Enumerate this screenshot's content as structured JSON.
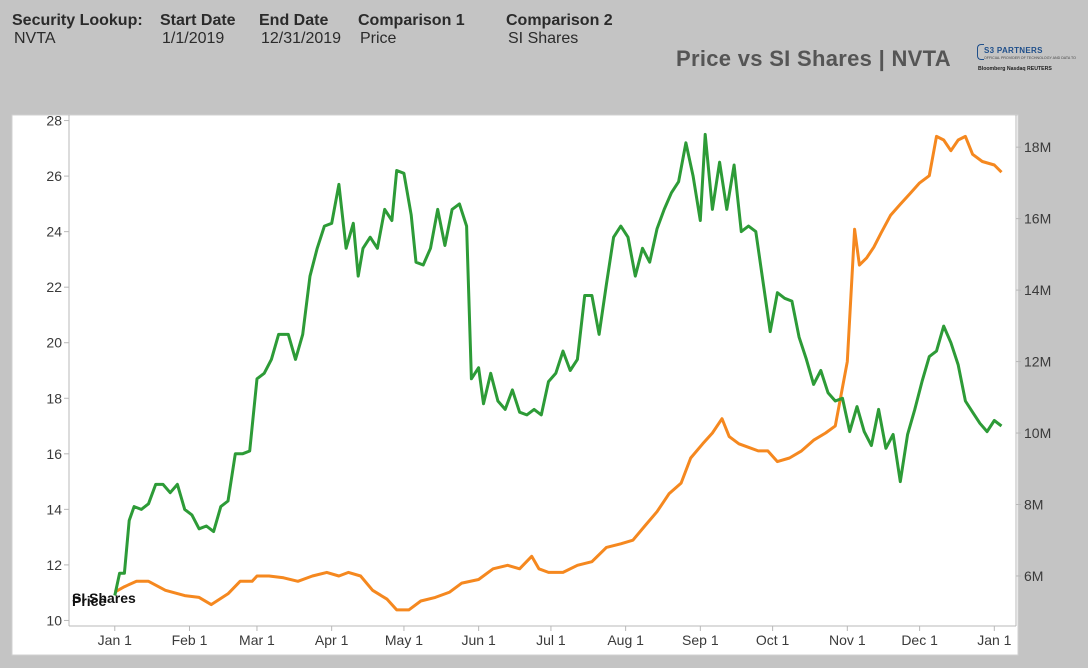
{
  "header": {
    "fields": [
      {
        "label": "Security Lookup:",
        "value": "NVTA"
      },
      {
        "label": "Start Date",
        "value": "1/1/2019"
      },
      {
        "label": "End Date",
        "value": "12/31/2019"
      },
      {
        "label": "Comparison 1",
        "value": "Price"
      },
      {
        "label": "Comparison 2",
        "value": "SI Shares"
      }
    ]
  },
  "logo": {
    "title": "S3 PARTNERS",
    "subtitle": "OFFICIAL PROVIDER OF TECHNOLOGY AND DATA TO",
    "vendors": "Bloomberg  Nasdaq  REUTERS"
  },
  "colors": {
    "price": "#2d9b37",
    "si_shares": "#f5881f",
    "background": "#c4c4c4",
    "plot": "#ffffff"
  },
  "chart_data": {
    "type": "line",
    "title": "Price vs SI Shares | NVTA",
    "x_ticks": [
      "Jan 1",
      "Feb 1",
      "Mar 1",
      "Apr 1",
      "May 1",
      "Jun 1",
      "Jul 1",
      "Aug 1",
      "Sep 1",
      "Oct 1",
      "Nov 1",
      "Dec 1",
      "Jan 1"
    ],
    "x_range": [
      "2018-12-13",
      "2020-01-10"
    ],
    "y_left": {
      "range": [
        9.8,
        28.2
      ],
      "ticks": [
        "10",
        "12",
        "14",
        "16",
        "18",
        "20",
        "22",
        "24",
        "26",
        "28"
      ]
    },
    "y_right": {
      "range": [
        4.6,
        18.9
      ],
      "unit": "M",
      "ticks": [
        "6M",
        "8M",
        "10M",
        "12M",
        "14M",
        "16M",
        "18M"
      ]
    },
    "grid": false,
    "series": [
      {
        "name": "Price",
        "axis": "left",
        "points": [
          [
            "2019-01-01",
            10.9
          ],
          [
            "2019-01-03",
            11.7
          ],
          [
            "2019-01-05",
            11.7
          ],
          [
            "2019-01-07",
            13.6
          ],
          [
            "2019-01-09",
            14.1
          ],
          [
            "2019-01-12",
            14.0
          ],
          [
            "2019-01-15",
            14.2
          ],
          [
            "2019-01-18",
            14.9
          ],
          [
            "2019-01-21",
            14.9
          ],
          [
            "2019-01-24",
            14.6
          ],
          [
            "2019-01-27",
            14.9
          ],
          [
            "2019-01-30",
            14.0
          ],
          [
            "2019-02-02",
            13.8
          ],
          [
            "2019-02-05",
            13.3
          ],
          [
            "2019-02-08",
            13.4
          ],
          [
            "2019-02-11",
            13.2
          ],
          [
            "2019-02-14",
            14.1
          ],
          [
            "2019-02-17",
            14.3
          ],
          [
            "2019-02-20",
            16.0
          ],
          [
            "2019-02-23",
            16.0
          ],
          [
            "2019-02-26",
            16.1
          ],
          [
            "2019-03-01",
            18.7
          ],
          [
            "2019-03-04",
            18.9
          ],
          [
            "2019-03-07",
            19.4
          ],
          [
            "2019-03-10",
            20.3
          ],
          [
            "2019-03-14",
            20.3
          ],
          [
            "2019-03-17",
            19.4
          ],
          [
            "2019-03-20",
            20.3
          ],
          [
            "2019-03-23",
            22.4
          ],
          [
            "2019-03-26",
            23.4
          ],
          [
            "2019-03-29",
            24.2
          ],
          [
            "2019-04-01",
            24.3
          ],
          [
            "2019-04-04",
            25.7
          ],
          [
            "2019-04-07",
            23.4
          ],
          [
            "2019-04-10",
            24.3
          ],
          [
            "2019-04-12",
            22.4
          ],
          [
            "2019-04-14",
            23.4
          ],
          [
            "2019-04-17",
            23.8
          ],
          [
            "2019-04-20",
            23.4
          ],
          [
            "2019-04-23",
            24.8
          ],
          [
            "2019-04-26",
            24.4
          ],
          [
            "2019-04-28",
            26.2
          ],
          [
            "2019-05-01",
            26.1
          ],
          [
            "2019-05-04",
            24.6
          ],
          [
            "2019-05-06",
            22.9
          ],
          [
            "2019-05-09",
            22.8
          ],
          [
            "2019-05-12",
            23.4
          ],
          [
            "2019-05-15",
            24.8
          ],
          [
            "2019-05-18",
            23.5
          ],
          [
            "2019-05-21",
            24.8
          ],
          [
            "2019-05-24",
            25.0
          ],
          [
            "2019-05-27",
            24.2
          ],
          [
            "2019-05-29",
            18.7
          ],
          [
            "2019-06-01",
            19.1
          ],
          [
            "2019-06-03",
            17.8
          ],
          [
            "2019-06-06",
            18.9
          ],
          [
            "2019-06-09",
            17.9
          ],
          [
            "2019-06-12",
            17.6
          ],
          [
            "2019-06-15",
            18.3
          ],
          [
            "2019-06-18",
            17.5
          ],
          [
            "2019-06-21",
            17.4
          ],
          [
            "2019-06-24",
            17.6
          ],
          [
            "2019-06-27",
            17.4
          ],
          [
            "2019-06-30",
            18.6
          ],
          [
            "2019-07-03",
            18.9
          ],
          [
            "2019-07-06",
            19.7
          ],
          [
            "2019-07-09",
            19.0
          ],
          [
            "2019-07-12",
            19.4
          ],
          [
            "2019-07-15",
            21.7
          ],
          [
            "2019-07-18",
            21.7
          ],
          [
            "2019-07-21",
            20.3
          ],
          [
            "2019-07-24",
            22.1
          ],
          [
            "2019-07-27",
            23.8
          ],
          [
            "2019-07-30",
            24.2
          ],
          [
            "2019-08-02",
            23.8
          ],
          [
            "2019-08-05",
            22.4
          ],
          [
            "2019-08-08",
            23.4
          ],
          [
            "2019-08-11",
            22.9
          ],
          [
            "2019-08-14",
            24.1
          ],
          [
            "2019-08-17",
            24.8
          ],
          [
            "2019-08-20",
            25.4
          ],
          [
            "2019-08-23",
            25.8
          ],
          [
            "2019-08-26",
            27.2
          ],
          [
            "2019-08-29",
            26.0
          ],
          [
            "2019-09-01",
            24.4
          ],
          [
            "2019-09-03",
            27.5
          ],
          [
            "2019-09-06",
            24.8
          ],
          [
            "2019-09-09",
            26.5
          ],
          [
            "2019-09-12",
            24.8
          ],
          [
            "2019-09-15",
            26.4
          ],
          [
            "2019-09-18",
            24.0
          ],
          [
            "2019-09-21",
            24.2
          ],
          [
            "2019-09-24",
            24.0
          ],
          [
            "2019-09-27",
            22.2
          ],
          [
            "2019-09-30",
            20.4
          ],
          [
            "2019-10-03",
            21.8
          ],
          [
            "2019-10-06",
            21.6
          ],
          [
            "2019-10-09",
            21.5
          ],
          [
            "2019-10-12",
            20.2
          ],
          [
            "2019-10-15",
            19.4
          ],
          [
            "2019-10-18",
            18.5
          ],
          [
            "2019-10-21",
            19.0
          ],
          [
            "2019-10-24",
            18.2
          ],
          [
            "2019-10-27",
            17.9
          ],
          [
            "2019-10-30",
            18.0
          ],
          [
            "2019-11-02",
            16.8
          ],
          [
            "2019-11-05",
            17.7
          ],
          [
            "2019-11-08",
            16.8
          ],
          [
            "2019-11-11",
            16.3
          ],
          [
            "2019-11-14",
            17.6
          ],
          [
            "2019-11-17",
            16.2
          ],
          [
            "2019-11-20",
            16.7
          ],
          [
            "2019-11-23",
            15.0
          ],
          [
            "2019-11-26",
            16.7
          ],
          [
            "2019-11-29",
            17.6
          ],
          [
            "2019-12-02",
            18.6
          ],
          [
            "2019-12-05",
            19.5
          ],
          [
            "2019-12-08",
            19.7
          ],
          [
            "2019-12-11",
            20.6
          ],
          [
            "2019-12-14",
            20.0
          ],
          [
            "2019-12-17",
            19.2
          ],
          [
            "2019-12-20",
            17.9
          ],
          [
            "2019-12-23",
            17.5
          ],
          [
            "2019-12-26",
            17.1
          ],
          [
            "2019-12-29",
            16.8
          ],
          [
            "2020-01-01",
            17.2
          ],
          [
            "2020-01-04",
            17.0
          ]
        ]
      },
      {
        "name": "SI Shares",
        "axis": "right",
        "points": [
          [
            "2019-01-01",
            5.55
          ],
          [
            "2019-01-05",
            5.7
          ],
          [
            "2019-01-10",
            5.85
          ],
          [
            "2019-01-15",
            5.85
          ],
          [
            "2019-01-22",
            5.6
          ],
          [
            "2019-01-30",
            5.45
          ],
          [
            "2019-02-05",
            5.4
          ],
          [
            "2019-02-10",
            5.2
          ],
          [
            "2019-02-17",
            5.5
          ],
          [
            "2019-02-22",
            5.85
          ],
          [
            "2019-02-27",
            5.85
          ],
          [
            "2019-03-01",
            6.0
          ],
          [
            "2019-03-06",
            6.0
          ],
          [
            "2019-03-12",
            5.95
          ],
          [
            "2019-03-18",
            5.85
          ],
          [
            "2019-03-24",
            6.0
          ],
          [
            "2019-03-30",
            6.1
          ],
          [
            "2019-04-04",
            6.0
          ],
          [
            "2019-04-08",
            6.1
          ],
          [
            "2019-04-13",
            6.0
          ],
          [
            "2019-04-18",
            5.6
          ],
          [
            "2019-04-24",
            5.35
          ],
          [
            "2019-04-28",
            5.05
          ],
          [
            "2019-05-03",
            5.05
          ],
          [
            "2019-05-08",
            5.3
          ],
          [
            "2019-05-14",
            5.4
          ],
          [
            "2019-05-20",
            5.55
          ],
          [
            "2019-05-25",
            5.8
          ],
          [
            "2019-06-01",
            5.9
          ],
          [
            "2019-06-07",
            6.2
          ],
          [
            "2019-06-13",
            6.3
          ],
          [
            "2019-06-18",
            6.2
          ],
          [
            "2019-06-23",
            6.55
          ],
          [
            "2019-06-26",
            6.2
          ],
          [
            "2019-06-30",
            6.1
          ],
          [
            "2019-07-06",
            6.1
          ],
          [
            "2019-07-12",
            6.3
          ],
          [
            "2019-07-18",
            6.4
          ],
          [
            "2019-07-24",
            6.8
          ],
          [
            "2019-07-30",
            6.9
          ],
          [
            "2019-08-04",
            7.0
          ],
          [
            "2019-08-09",
            7.4
          ],
          [
            "2019-08-14",
            7.8
          ],
          [
            "2019-08-19",
            8.3
          ],
          [
            "2019-08-24",
            8.6
          ],
          [
            "2019-08-28",
            9.3
          ],
          [
            "2019-09-02",
            9.7
          ],
          [
            "2019-09-06",
            10.0
          ],
          [
            "2019-09-10",
            10.4
          ],
          [
            "2019-09-13",
            9.9
          ],
          [
            "2019-09-17",
            9.7
          ],
          [
            "2019-09-21",
            9.6
          ],
          [
            "2019-09-25",
            9.5
          ],
          [
            "2019-09-29",
            9.5
          ],
          [
            "2019-10-03",
            9.2
          ],
          [
            "2019-10-08",
            9.3
          ],
          [
            "2019-10-13",
            9.5
          ],
          [
            "2019-10-18",
            9.8
          ],
          [
            "2019-10-23",
            10.0
          ],
          [
            "2019-10-27",
            10.2
          ],
          [
            "2019-11-01",
            12.0
          ],
          [
            "2019-11-04",
            15.7
          ],
          [
            "2019-11-06",
            14.7
          ],
          [
            "2019-11-09",
            14.9
          ],
          [
            "2019-11-12",
            15.2
          ],
          [
            "2019-11-15",
            15.6
          ],
          [
            "2019-11-19",
            16.1
          ],
          [
            "2019-11-23",
            16.4
          ],
          [
            "2019-11-27",
            16.7
          ],
          [
            "2019-12-01",
            17.0
          ],
          [
            "2019-12-05",
            17.2
          ],
          [
            "2019-12-08",
            18.3
          ],
          [
            "2019-12-11",
            18.2
          ],
          [
            "2019-12-14",
            17.9
          ],
          [
            "2019-12-17",
            18.2
          ],
          [
            "2019-12-20",
            18.3
          ],
          [
            "2019-12-23",
            17.8
          ],
          [
            "2019-12-27",
            17.6
          ],
          [
            "2020-01-01",
            17.5
          ],
          [
            "2020-01-04",
            17.3
          ]
        ]
      }
    ]
  }
}
